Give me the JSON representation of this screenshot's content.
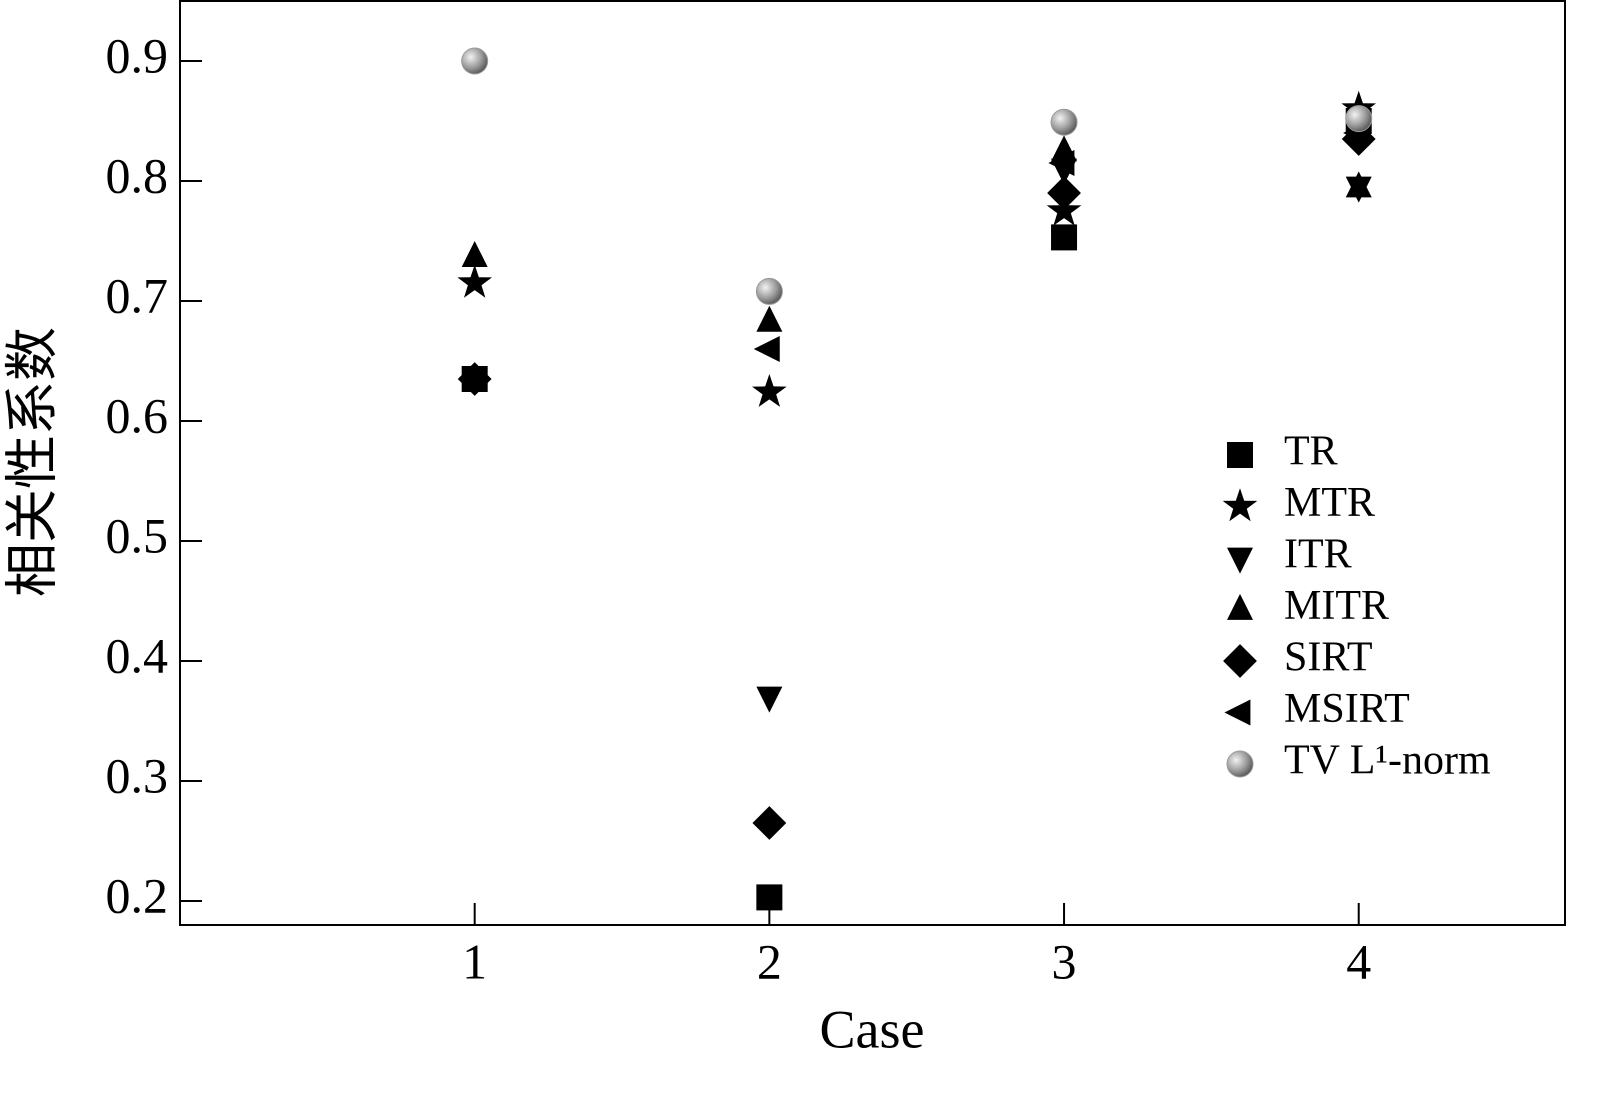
{
  "chart_data": {
    "type": "scatter",
    "x_label": "Case",
    "y_label": "相关性系数",
    "x": [
      1,
      2,
      3,
      4
    ],
    "xlim": [
      0,
      4.7
    ],
    "xticks": [
      1,
      2,
      3,
      4
    ],
    "ylim": [
      0.18,
      0.95
    ],
    "yticks": [
      0.2,
      0.3,
      0.4,
      0.5,
      0.6,
      0.7,
      0.8,
      0.9
    ],
    "legend": "right",
    "series": [
      {
        "name": "TR",
        "marker": "square",
        "color": "#000000",
        "values": [
          0.635,
          0.203,
          0.753,
          0.85
        ]
      },
      {
        "name": "MTR",
        "marker": "star",
        "color": "#000000",
        "values": [
          0.715,
          0.624,
          0.775,
          0.86
        ]
      },
      {
        "name": "ITR",
        "marker": "triangle-down",
        "color": "#000000",
        "values": [
          0.635,
          0.37,
          0.81,
          0.795
        ]
      },
      {
        "name": "MITR",
        "marker": "triangle-up",
        "color": "#000000",
        "values": [
          0.737,
          0.683,
          0.825,
          0.795
        ]
      },
      {
        "name": "SIRT",
        "marker": "diamond",
        "color": "#000000",
        "values": [
          0.635,
          0.265,
          0.79,
          0.835
        ]
      },
      {
        "name": "MSIRT",
        "marker": "triangle-left",
        "color": "#000000",
        "values": [
          0.635,
          0.66,
          0.815,
          0.84
        ]
      },
      {
        "name": "TV L¹-norm",
        "marker": "sphere",
        "color": "#9a9a9a",
        "values": [
          0.9,
          0.708,
          0.849,
          0.852
        ]
      }
    ]
  }
}
